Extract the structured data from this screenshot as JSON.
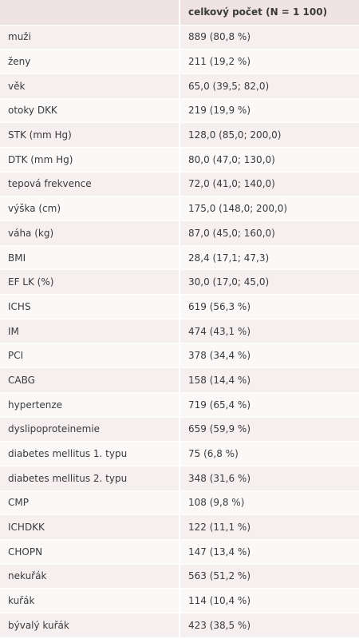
{
  "table": {
    "header": "celkový počet (N = 1 100)",
    "rows": [
      [
        "muži",
        "889 (80,8 %)"
      ],
      [
        "ženy",
        "211 (19,2 %)"
      ],
      [
        "věk",
        "65,0 (39,5; 82,0)"
      ],
      [
        "otoky DKK",
        "219 (19,9 %)"
      ],
      [
        "STK (mm Hg)",
        "128,0 (85,0; 200,0)"
      ],
      [
        "DTK (mm Hg)",
        "80,0 (47,0; 130,0)"
      ],
      [
        "tepová frekvence",
        "72,0 (41,0; 140,0)"
      ],
      [
        "výška (cm)",
        "175,0 (148,0; 200,0)"
      ],
      [
        "váha (kg)",
        "87,0 (45,0; 160,0)"
      ],
      [
        "BMI",
        "28,4 (17,1; 47,3)"
      ],
      [
        "EF LK (%)",
        "30,0 (17,0; 45,0)"
      ],
      [
        "ICHS",
        "619 (56,3 %)"
      ],
      [
        "IM",
        "474 (43,1 %)"
      ],
      [
        "PCI",
        "378 (34,4 %)"
      ],
      [
        "CABG",
        "158 (14,4 %)"
      ],
      [
        "hypertenze",
        "719 (65,4 %)"
      ],
      [
        "dyslipoproteinemie",
        "659 (59,9 %)"
      ],
      [
        "diabetes mellitus 1. typu",
        "75 (6,8 %)"
      ],
      [
        "diabetes mellitus 2. typu",
        "348 (31,6 %)"
      ],
      [
        "CMP",
        "108 (9,8 %)"
      ],
      [
        "ICHDKK",
        "122 (11,1 %)"
      ],
      [
        "CHOPN",
        "147 (13,4 %)"
      ],
      [
        "nekuřák",
        "563 (51,2 %)"
      ],
      [
        "kuřák",
        "114 (10,4 %)"
      ],
      [
        "bývalý kuřák",
        "423 (38,5 %)"
      ]
    ]
  }
}
